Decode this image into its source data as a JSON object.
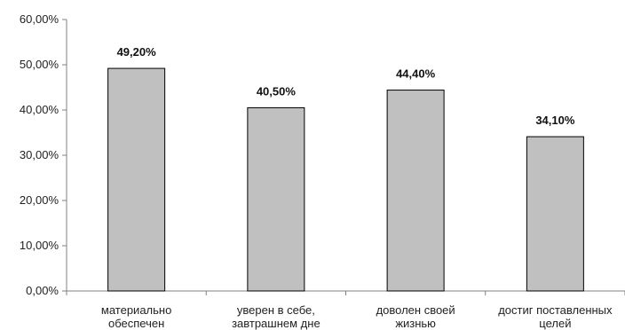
{
  "chart_data": {
    "type": "bar",
    "categories": [
      [
        "материально",
        "обеспечен"
      ],
      [
        "уверен в себе,",
        "завтрашнем дне"
      ],
      [
        "доволен своей",
        "жизнью"
      ],
      [
        "достиг поставленных",
        "целей"
      ]
    ],
    "values": [
      49.2,
      40.5,
      44.4,
      34.1
    ],
    "value_labels": [
      "49,20%",
      "40,50%",
      "44,40%",
      "34,10%"
    ],
    "ylim": [
      0,
      60
    ],
    "yticks": [
      0,
      10,
      20,
      30,
      40,
      50,
      60
    ],
    "ytick_labels": [
      "0,00%",
      "10,00%",
      "20,00%",
      "30,00%",
      "40,00%",
      "50,00%",
      "60,00%"
    ],
    "grid": false,
    "legend": "none",
    "colors": {
      "bar_fill": "#c0c0c0",
      "bar_stroke": "#000000",
      "axis": "#808080"
    }
  }
}
